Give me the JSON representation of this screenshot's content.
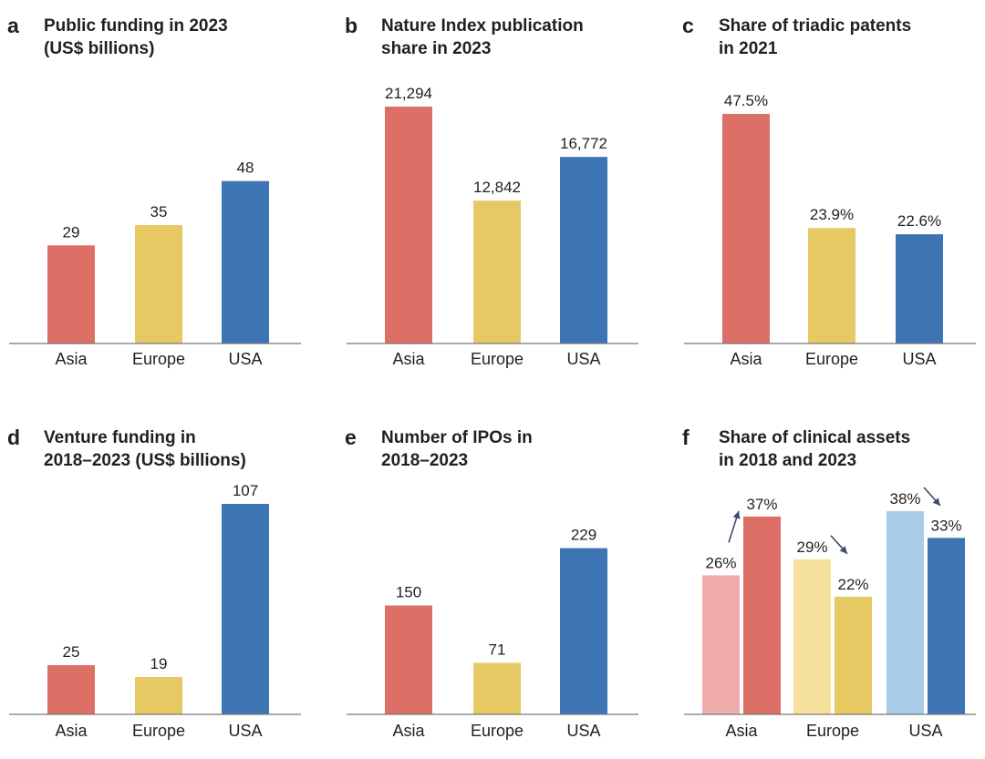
{
  "colors": {
    "asia": "#dd7066",
    "europe": "#e7c964",
    "usa": "#3c74b4",
    "asia_light": "#f0acaa",
    "europe_light": "#f5e09c",
    "usa_light": "#aacbe7"
  },
  "chart_data": [
    {
      "type": "bar",
      "letter": "a",
      "title_lines": [
        "Public funding in 2023",
        "(US$ billions)"
      ],
      "categories": [
        "Asia",
        "Europe",
        "USA"
      ],
      "values": [
        29,
        35,
        48
      ],
      "value_labels": [
        "29",
        "35",
        "48"
      ],
      "ylim": [
        0,
        70
      ]
    },
    {
      "type": "bar",
      "letter": "b",
      "title_lines": [
        "Nature Index publication",
        "share in 2023"
      ],
      "categories": [
        "Asia",
        "Europe",
        "USA"
      ],
      "values": [
        21294,
        12842,
        16772
      ],
      "value_labels": [
        "21,294",
        "12,842",
        "16,772"
      ],
      "ylim": [
        0,
        21294
      ]
    },
    {
      "type": "bar",
      "letter": "c",
      "title_lines": [
        "Share of triadic patents",
        "in 2021"
      ],
      "categories": [
        "Asia",
        "Europe",
        "USA"
      ],
      "values": [
        47.5,
        23.9,
        22.6
      ],
      "value_labels": [
        "47.5%",
        "23.9%",
        "22.6%"
      ],
      "ylim": [
        0,
        47.5
      ]
    },
    {
      "type": "bar",
      "letter": "d",
      "title_lines": [
        "Venture funding in",
        "2018–2023 (US$ billions)"
      ],
      "categories": [
        "Asia",
        "Europe",
        "USA"
      ],
      "values": [
        25,
        19,
        107
      ],
      "value_labels": [
        "25",
        "19",
        "107"
      ],
      "ylim": [
        0,
        107
      ]
    },
    {
      "type": "bar",
      "letter": "e",
      "title_lines": [
        "Number of IPOs in",
        "2018–2023"
      ],
      "categories": [
        "Asia",
        "Europe",
        "USA"
      ],
      "values": [
        150,
        71,
        229
      ],
      "value_labels": [
        "150",
        "71",
        "229"
      ],
      "ylim": [
        0,
        290
      ]
    },
    {
      "type": "bar",
      "letter": "f",
      "title_lines": [
        "Share of clinical assets",
        "in 2018 and 2023"
      ],
      "categories": [
        "Asia",
        "Europe",
        "USA"
      ],
      "series": [
        {
          "values": [
            26,
            29,
            38
          ],
          "value_labels": [
            "26%",
            "29%",
            "38%"
          ]
        },
        {
          "values": [
            37,
            22,
            33
          ],
          "value_labels": [
            "37%",
            "22%",
            "33%"
          ]
        }
      ],
      "trend": [
        "up",
        "down",
        "down"
      ],
      "ylim": [
        0,
        38
      ]
    }
  ]
}
